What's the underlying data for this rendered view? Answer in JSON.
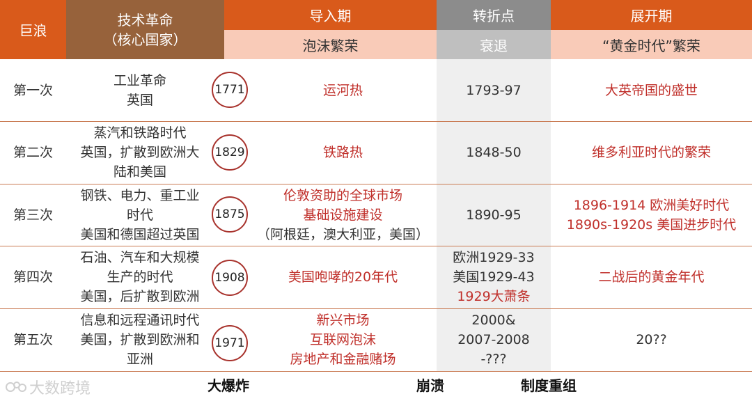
{
  "header": {
    "col_wave": "巨浪",
    "col_tech": [
      "技术革命",
      "（核心国家）"
    ],
    "col_install": "导入期",
    "col_install_sub": "泡沫繁荣",
    "col_turn": "转折点",
    "col_turn_sub": "衰退",
    "col_deploy": "展开期",
    "col_deploy_sub": "“黄金时代”繁荣"
  },
  "rows": [
    {
      "wave": "第一次",
      "tech": [
        "工业革命",
        "英国"
      ],
      "year": "1771",
      "install": [
        "运河热"
      ],
      "turn": [
        {
          "text": "1793-97",
          "red": false
        }
      ],
      "deploy": [
        "大英帝国的盛世"
      ]
    },
    {
      "wave": "第二次",
      "tech": [
        "蒸汽和铁路时代",
        "英国，扩散到欧洲大",
        "陆和美国"
      ],
      "year": "1829",
      "install": [
        "铁路热"
      ],
      "turn": [
        {
          "text": "1848-50",
          "red": false
        }
      ],
      "deploy": [
        "维多利亚时代的繁荣"
      ]
    },
    {
      "wave": "第三次",
      "tech": [
        "钢铁、电力、重工业",
        "时代",
        "美国和德国超过英国"
      ],
      "year": "1875",
      "install": [
        "伦敦资助的全球市场",
        "基础设施建设",
        "（阿根廷，澳大利亚，美国）"
      ],
      "turn": [
        {
          "text": "1890-95",
          "red": false
        }
      ],
      "deploy": [
        "1896-1914 欧洲美好时代",
        "1890s-1920s 美国进步时代"
      ]
    },
    {
      "wave": "第四次",
      "tech": [
        "石油、汽车和大规模",
        "生产的时代",
        "美国，后扩散到欧洲"
      ],
      "year": "1908",
      "install": [
        "美国咆哮的20年代"
      ],
      "turn": [
        {
          "text": "欧洲1929-33",
          "red": false
        },
        {
          "text": "美国1929-43",
          "red": false
        },
        {
          "text": "1929大萧条",
          "red": true
        }
      ],
      "deploy": [
        "二战后的黄金年代"
      ]
    },
    {
      "wave": "第五次",
      "tech": [
        "信息和远程通讯时代",
        "美国，扩散到欧洲和",
        "亚洲"
      ],
      "year": "1971",
      "install": [
        "新兴市场",
        "互联网泡沫",
        "房地产和金融赌场"
      ],
      "turn": [
        {
          "text": "2000&",
          "red": false
        },
        {
          "text": "2007-2008",
          "red": false
        },
        {
          "text": "-???",
          "red": false
        }
      ],
      "deploy": [
        "20??"
      ]
    }
  ],
  "footer": {
    "big_bang": "大爆炸",
    "crash": "崩溃",
    "restructure": "制度重组"
  },
  "watermark": "大数跨境",
  "colors": {
    "header_orange": "#d95a1b",
    "header_brown": "#97623b",
    "header_pink": "#f9cbb8",
    "header_gray": "#8c8c8c",
    "header_gray_light": "#bfbfbf",
    "red_text": "#c0302b",
    "circle_border": "#a8322c"
  }
}
